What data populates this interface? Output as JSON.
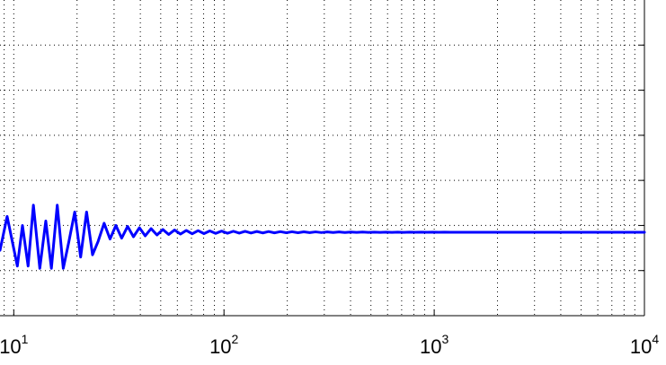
{
  "chart_data": {
    "type": "line",
    "title": "",
    "xlabel": "",
    "ylabel": "",
    "x_scale": "log",
    "xlim": [
      8.6,
      10000
    ],
    "ylim": [
      0,
      7
    ],
    "grid": true,
    "x_ticks": [
      {
        "value": 10,
        "base": "10",
        "exp": "1"
      },
      {
        "value": 100,
        "base": "10",
        "exp": "2"
      },
      {
        "value": 1000,
        "base": "10",
        "exp": "3"
      },
      {
        "value": 10000,
        "base": "10",
        "exp": "4"
      }
    ],
    "y_grid_values": [
      1,
      2,
      3,
      4,
      5,
      6
    ],
    "series": [
      {
        "color": "#0000ff",
        "steady_value": 1.85,
        "x": [
          8.6,
          9.3,
          10.4,
          11.0,
          11.7,
          12.4,
          13.3,
          14.2,
          15.1,
          16.1,
          17.2,
          18.3,
          19.5,
          20.8,
          22.2,
          23.7,
          25.2,
          26.9,
          28.7,
          30.6,
          32.6,
          34.8,
          37.1,
          39.6,
          42.2,
          45.0,
          48.0,
          51.2,
          54.6,
          58.2,
          62.1,
          66.2,
          70.6,
          75.3,
          80.3,
          85.6,
          91.3,
          97.4,
          103.9,
          110.8,
          118.2,
          126.0,
          134.4,
          143.3,
          152.8,
          163.0,
          173.8,
          185.4,
          197.7,
          210.8,
          224.8,
          239.8,
          255.7,
          272.7,
          290.8,
          310.1,
          330.7,
          352.7,
          376.1,
          401.1,
          427.7,
          456.1,
          486.4,
          518.7,
          553.2,
          589.9,
          629.1,
          670.9,
          715.5,
          763.0,
          813.7,
          867.7,
          925.3,
          986.8,
          1052.3,
          1122.2,
          1196.7,
          1276.2,
          1360.9,
          1451.3,
          1547.7,
          1650.5,
          1760.1,
          1877.0,
          2001.6,
          2134.6,
          2276.3,
          2427.5,
          2588.7,
          2760.6,
          2943.9,
          3139.4,
          3347.9,
          3570.3,
          3807.4,
          4060.2,
          4329.9,
          4617.4,
          4924.1,
          5251.1,
          5599.8,
          5971.7,
          6368.3,
          6791.2,
          7242.2,
          7723.2,
          8236.1,
          8783.0,
          9366.3,
          10000
        ],
        "y": [
          1.45,
          2.2,
          1.1,
          2.0,
          1.1,
          2.45,
          1.05,
          2.1,
          1.05,
          2.45,
          1.05,
          1.65,
          2.3,
          1.3,
          2.3,
          1.35,
          1.65,
          2.05,
          1.7,
          2.0,
          1.72,
          1.98,
          1.75,
          1.95,
          1.77,
          1.93,
          1.79,
          1.91,
          1.8,
          1.9,
          1.81,
          1.89,
          1.815,
          1.885,
          1.82,
          1.88,
          1.825,
          1.875,
          1.828,
          1.872,
          1.83,
          1.87,
          1.833,
          1.867,
          1.835,
          1.865,
          1.837,
          1.863,
          1.839,
          1.861,
          1.84,
          1.86,
          1.842,
          1.858,
          1.843,
          1.857,
          1.844,
          1.856,
          1.845,
          1.855,
          1.846,
          1.854,
          1.847,
          1.853,
          1.847,
          1.853,
          1.848,
          1.852,
          1.848,
          1.852,
          1.849,
          1.851,
          1.849,
          1.851,
          1.849,
          1.851,
          1.85,
          1.85,
          1.85,
          1.85,
          1.85,
          1.85,
          1.85,
          1.85,
          1.85,
          1.85,
          1.85,
          1.85,
          1.85,
          1.85,
          1.85,
          1.85,
          1.85,
          1.85,
          1.85,
          1.85,
          1.85,
          1.85,
          1.85,
          1.85,
          1.85,
          1.85,
          1.85,
          1.85,
          1.85,
          1.85,
          1.85,
          1.85,
          1.85,
          1.85
        ]
      }
    ]
  }
}
